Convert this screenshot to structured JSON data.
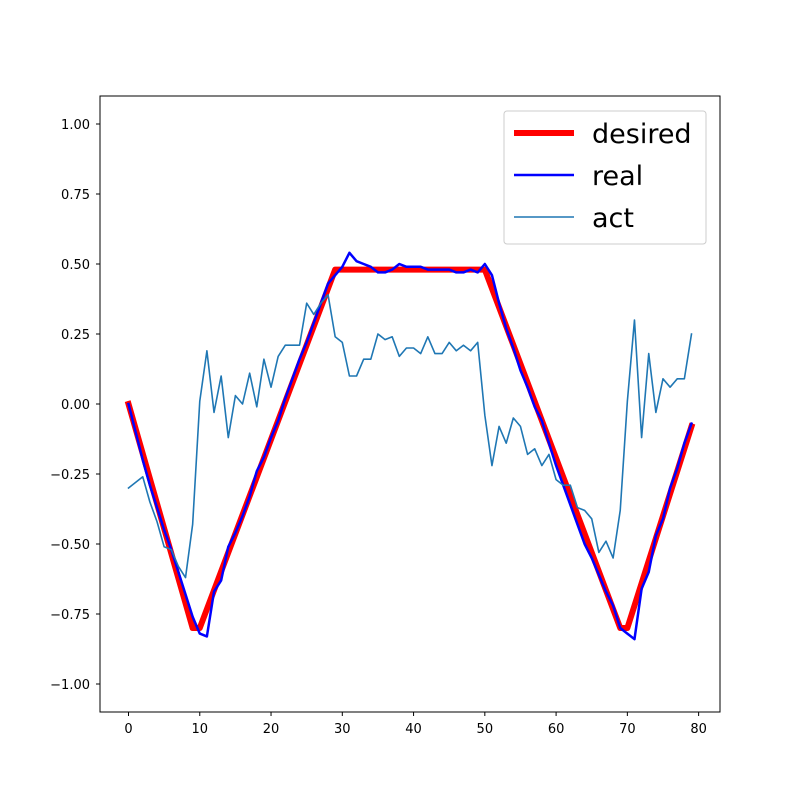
{
  "chart_data": {
    "type": "line",
    "title": "",
    "xlabel": "",
    "ylabel": "",
    "xlim": [
      -4,
      83
    ],
    "ylim": [
      -1.1,
      1.1
    ],
    "xticks": [
      0,
      10,
      20,
      30,
      40,
      50,
      60,
      70,
      80
    ],
    "xtick_labels": [
      "0",
      "10",
      "20",
      "30",
      "40",
      "50",
      "60",
      "70",
      "80"
    ],
    "yticks": [
      -1.0,
      -0.75,
      -0.5,
      -0.25,
      0.0,
      0.25,
      0.5,
      0.75,
      1.0
    ],
    "ytick_labels": [
      "−1.00",
      "−0.75",
      "−0.50",
      "−0.25",
      "0.00",
      "0.25",
      "0.50",
      "0.75",
      "1.00"
    ],
    "grid": false,
    "legend_position": "top-right",
    "series": [
      {
        "name": "desired",
        "color": "#ff0000",
        "linewidth": 6,
        "x": [
          0,
          9,
          10,
          29,
          30,
          49,
          50,
          69,
          70,
          79
        ],
        "y": [
          0.0,
          -0.8,
          -0.8,
          0.48,
          0.48,
          0.48,
          0.48,
          -0.8,
          -0.8,
          -0.08
        ]
      },
      {
        "name": "real",
        "color": "#0000ff",
        "linewidth": 2.5,
        "x": [
          0,
          1,
          2,
          3,
          4,
          5,
          6,
          7,
          8,
          9,
          10,
          11,
          12,
          13,
          14,
          15,
          16,
          17,
          18,
          19,
          20,
          21,
          22,
          23,
          24,
          25,
          26,
          27,
          28,
          29,
          30,
          31,
          32,
          33,
          34,
          35,
          36,
          37,
          38,
          39,
          40,
          41,
          42,
          43,
          44,
          45,
          46,
          47,
          48,
          49,
          50,
          51,
          52,
          53,
          54,
          55,
          56,
          57,
          58,
          59,
          60,
          61,
          62,
          63,
          64,
          65,
          66,
          67,
          68,
          69,
          70,
          71,
          72,
          73,
          74,
          75,
          76,
          77,
          78,
          79
        ],
        "y": [
          0.0,
          -0.1,
          -0.2,
          -0.29,
          -0.37,
          -0.45,
          -0.52,
          -0.6,
          -0.68,
          -0.76,
          -0.82,
          -0.83,
          -0.67,
          -0.63,
          -0.51,
          -0.46,
          -0.4,
          -0.33,
          -0.24,
          -0.19,
          -0.12,
          -0.06,
          0.02,
          0.09,
          0.16,
          0.22,
          0.29,
          0.36,
          0.43,
          0.46,
          0.49,
          0.54,
          0.51,
          0.5,
          0.49,
          0.47,
          0.47,
          0.48,
          0.5,
          0.49,
          0.49,
          0.49,
          0.48,
          0.48,
          0.48,
          0.48,
          0.47,
          0.47,
          0.48,
          0.47,
          0.5,
          0.46,
          0.36,
          0.27,
          0.2,
          0.12,
          0.06,
          -0.01,
          -0.06,
          -0.14,
          -0.22,
          -0.29,
          -0.36,
          -0.43,
          -0.5,
          -0.55,
          -0.61,
          -0.67,
          -0.72,
          -0.8,
          -0.82,
          -0.84,
          -0.66,
          -0.6,
          -0.47,
          -0.41,
          -0.3,
          -0.23,
          -0.14,
          -0.07
        ]
      },
      {
        "name": "act",
        "color": "#1f77b4",
        "linewidth": 1.6,
        "x": [
          0,
          1,
          2,
          3,
          4,
          5,
          6,
          7,
          8,
          9,
          10,
          11,
          12,
          13,
          14,
          15,
          16,
          17,
          18,
          19,
          20,
          21,
          22,
          23,
          24,
          25,
          26,
          27,
          28,
          29,
          30,
          31,
          32,
          33,
          34,
          35,
          36,
          37,
          38,
          39,
          40,
          41,
          42,
          43,
          44,
          45,
          46,
          47,
          48,
          49,
          50,
          51,
          52,
          53,
          54,
          55,
          56,
          57,
          58,
          59,
          60,
          61,
          62,
          63,
          64,
          65,
          66,
          67,
          68,
          69,
          70,
          71,
          72,
          73,
          74,
          75,
          76,
          77,
          78,
          79
        ],
        "y": [
          -0.3,
          -0.28,
          -0.26,
          -0.35,
          -0.42,
          -0.51,
          -0.52,
          -0.58,
          -0.62,
          -0.43,
          0.01,
          0.19,
          -0.03,
          0.1,
          -0.12,
          0.03,
          0.0,
          0.11,
          -0.01,
          0.16,
          0.06,
          0.17,
          0.21,
          0.21,
          0.21,
          0.36,
          0.32,
          0.36,
          0.39,
          0.24,
          0.22,
          0.1,
          0.1,
          0.16,
          0.16,
          0.25,
          0.23,
          0.24,
          0.17,
          0.2,
          0.2,
          0.18,
          0.24,
          0.18,
          0.18,
          0.22,
          0.19,
          0.21,
          0.19,
          0.22,
          -0.04,
          -0.22,
          -0.08,
          -0.14,
          -0.05,
          -0.08,
          -0.18,
          -0.16,
          -0.22,
          -0.18,
          -0.27,
          -0.29,
          -0.29,
          -0.37,
          -0.38,
          -0.41,
          -0.53,
          -0.49,
          -0.55,
          -0.38,
          0.01,
          0.3,
          -0.12,
          0.18,
          -0.03,
          0.09,
          0.06,
          0.09,
          0.09,
          0.25
        ]
      }
    ]
  }
}
